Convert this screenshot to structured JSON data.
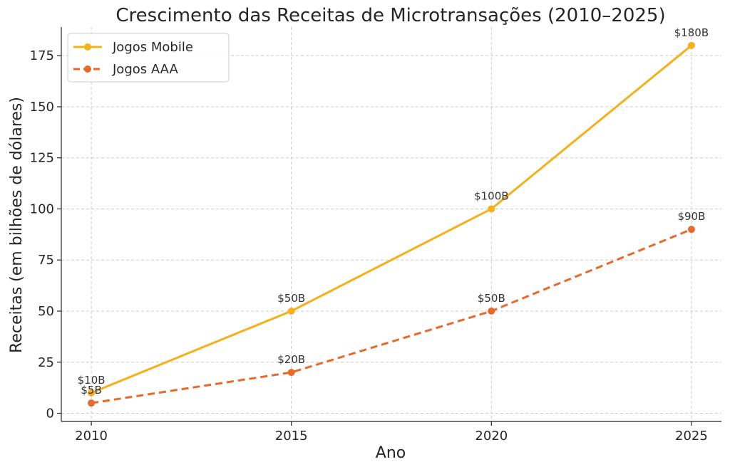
{
  "chart_data": {
    "type": "line",
    "title": "Crescimento das Receitas de Microtransações (2010–2025)",
    "xlabel": "Ano",
    "ylabel": "Receitas (em bilhões de dólares)",
    "x": [
      2010,
      2015,
      2020,
      2025
    ],
    "x_ticks": [
      "2010",
      "2015",
      "2020",
      "2025"
    ],
    "y_ticks": [
      "0",
      "25",
      "50",
      "75",
      "100",
      "125",
      "150",
      "175"
    ],
    "xlim": [
      2009.25,
      2025.75
    ],
    "ylim": [
      -4,
      189
    ],
    "grid": true,
    "legend_position": "top-left",
    "series": [
      {
        "name": "Jogos Mobile",
        "values": [
          10,
          50,
          100,
          180
        ],
        "labels": [
          "$10B",
          "$50B",
          "$100B",
          "$180B"
        ],
        "color": "#f5b01a",
        "style": "solid",
        "marker": "circle"
      },
      {
        "name": "Jogos AAA",
        "values": [
          5,
          20,
          50,
          90
        ],
        "labels": [
          "$5B",
          "$20B",
          "$50B",
          "$90B"
        ],
        "color": "#e8692a",
        "style": "dashed",
        "marker": "circle"
      }
    ]
  }
}
